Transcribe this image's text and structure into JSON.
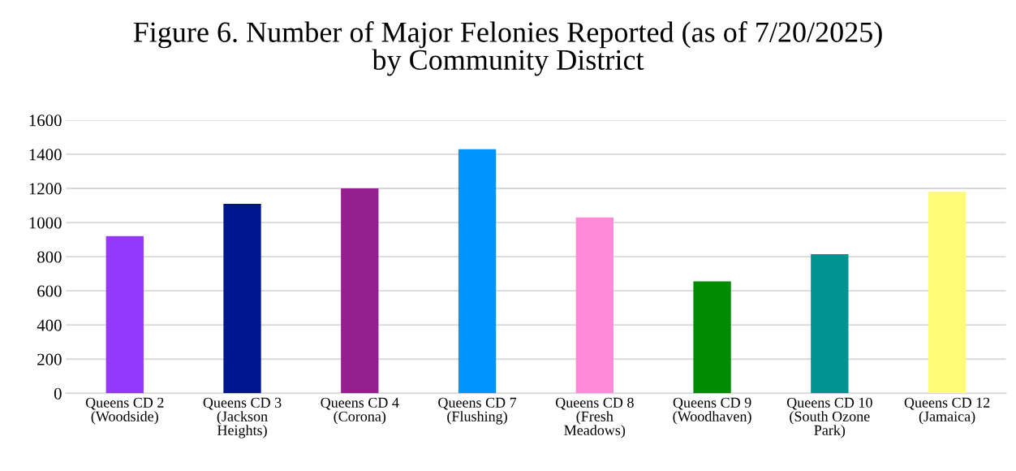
{
  "chart_data": {
    "type": "bar",
    "title": "Figure 6. Number of Major Felonies Reported (as of 7/20/2025)\nby Community District",
    "categories": [
      "Queens CD 2\n(Woodside)",
      "Queens CD 3\n(Jackson\nHeights)",
      "Queens CD 4\n(Corona)",
      "Queens CD 7\n(Flushing)",
      "Queens CD 8\n(Fresh\nMeadows)",
      "Queens CD 9\n(Woodhaven)",
      "Queens CD 10\n(South Ozone\nPark)",
      "Queens CD 12\n(Jamaica)"
    ],
    "values": [
      920,
      1110,
      1200,
      1430,
      1030,
      655,
      815,
      1180
    ],
    "colors": [
      "#9438fe",
      "#001690",
      "#941f8f",
      "#0094ff",
      "#ff8bd8",
      "#008b00",
      "#009191",
      "#fffb78"
    ],
    "ylim": [
      0,
      1600
    ],
    "yticks": [
      0,
      200,
      400,
      600,
      800,
      1000,
      1200,
      1400,
      1600
    ],
    "grid": "y",
    "legend": false
  }
}
